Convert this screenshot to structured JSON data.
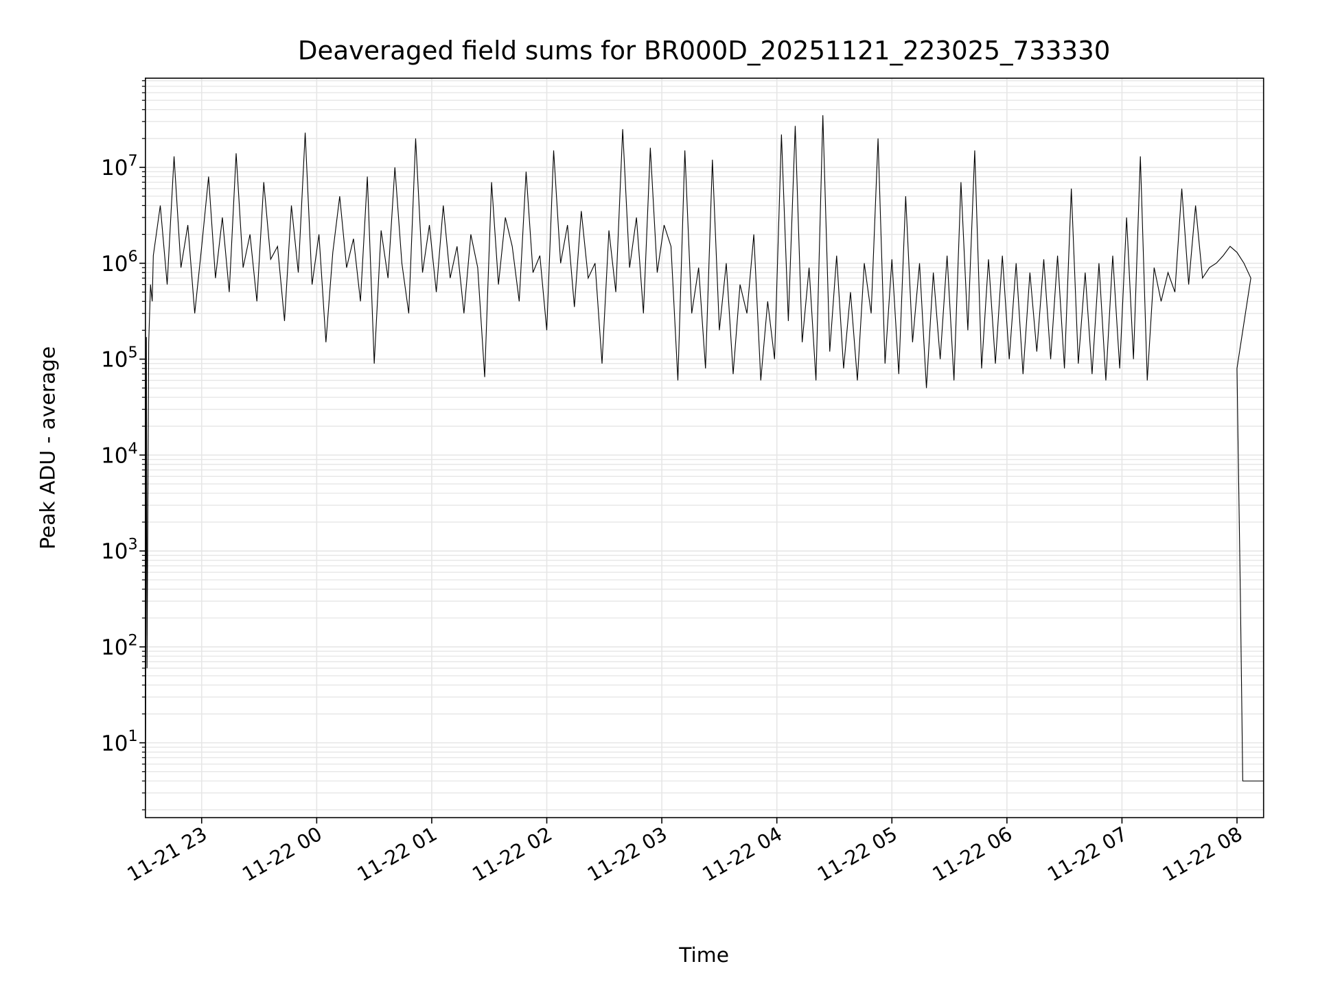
{
  "chart_data": {
    "type": "line",
    "title": "Deaveraged field sums for BR000D_20251121_223025_733330",
    "xlabel": "Time",
    "ylabel": "Peak ADU - average",
    "x_unit": "hours since 2025-11-21 00:00",
    "xlim": [
      22.511,
      32.231
    ],
    "ylim": [
      1.66,
      85000000
    ],
    "yscale": "log",
    "grid": true,
    "line_color": "#000000",
    "grid_color": "#e6e6e6",
    "x_ticks": [
      {
        "value": 23,
        "label": "11-21 23"
      },
      {
        "value": 24,
        "label": "11-22 00"
      },
      {
        "value": 25,
        "label": "11-22 01"
      },
      {
        "value": 26,
        "label": "11-22 02"
      },
      {
        "value": 27,
        "label": "11-22 03"
      },
      {
        "value": 28,
        "label": "11-22 04"
      },
      {
        "value": 29,
        "label": "11-22 05"
      },
      {
        "value": 30,
        "label": "11-22 06"
      },
      {
        "value": 31,
        "label": "11-22 07"
      },
      {
        "value": 32,
        "label": "11-22 08"
      }
    ],
    "y_ticks": [
      {
        "value": 10,
        "base": "10",
        "exp": "1"
      },
      {
        "value": 100,
        "base": "10",
        "exp": "2"
      },
      {
        "value": 1000,
        "base": "10",
        "exp": "3"
      },
      {
        "value": 10000,
        "base": "10",
        "exp": "4"
      },
      {
        "value": 100000,
        "base": "10",
        "exp": "5"
      },
      {
        "value": 1000000,
        "base": "10",
        "exp": "6"
      },
      {
        "value": 10000000,
        "base": "10",
        "exp": "7"
      }
    ],
    "series": [
      {
        "name": "Peak ADU - average",
        "head": [
          [
            22.512,
            1.6
          ],
          [
            22.52,
            170000
          ],
          [
            22.525,
            60
          ],
          [
            22.54,
            150000
          ],
          [
            22.555,
            600000
          ],
          [
            22.57,
            400000
          ]
        ],
        "x_start": 22.58,
        "x_step": 0.06,
        "values": [
          1200000,
          4000000,
          600000,
          13000000,
          900000,
          2500000,
          300000,
          1500000,
          8000000,
          700000,
          3000000,
          500000,
          14000000,
          900000,
          2000000,
          400000,
          7000000,
          1100000,
          1500000,
          250000,
          4000000,
          800000,
          23000000,
          600000,
          2000000,
          150000,
          1300000,
          5000000,
          900000,
          1800000,
          400000,
          8000000,
          90000,
          2200000,
          700000,
          10000000,
          1000000,
          300000,
          20000000,
          800000,
          2500000,
          500000,
          4000000,
          700000,
          1500000,
          300000,
          2000000,
          900000,
          65000,
          7000000,
          600000,
          3000000,
          1500000,
          400000,
          9000000,
          800000,
          1200000,
          200000,
          15000000,
          1000000,
          2500000,
          350000,
          3500000,
          700000,
          1000000,
          90000,
          2200000,
          500000,
          25000000,
          900000,
          3000000,
          300000,
          16000000,
          800000,
          2500000,
          1500000,
          60000,
          15000000,
          300000,
          900000,
          80000,
          12000000,
          200000,
          1000000,
          70000,
          600000,
          300000,
          2000000,
          60000,
          400000,
          100000,
          22000000,
          250000,
          27000000,
          150000,
          900000,
          60000,
          35000000,
          120000,
          1200000,
          80000,
          500000,
          60000,
          1000000,
          300000,
          20000000,
          90000,
          1100000,
          70000,
          5000000,
          150000,
          1000000,
          50000,
          800000,
          100000,
          1200000,
          60000,
          7000000,
          200000,
          15000000,
          80000,
          1100000,
          90000,
          1200000,
          100000,
          1000000,
          70000,
          800000,
          120000,
          1100000,
          100000,
          1200000,
          80000,
          6000000,
          90000,
          800000,
          70000,
          1000000,
          60000,
          1200000,
          80000,
          3000000,
          100000,
          13000000,
          60000,
          900000,
          400000,
          800000,
          500000,
          6000000,
          600000,
          4000000,
          700000,
          900000,
          1000000,
          1200000,
          1500000,
          1300000,
          1000000,
          700000
        ],
        "tail": [
          [
            32.0,
            80000
          ],
          [
            32.03,
            300
          ],
          [
            32.05,
            4
          ],
          [
            32.231,
            4
          ]
        ]
      }
    ]
  }
}
